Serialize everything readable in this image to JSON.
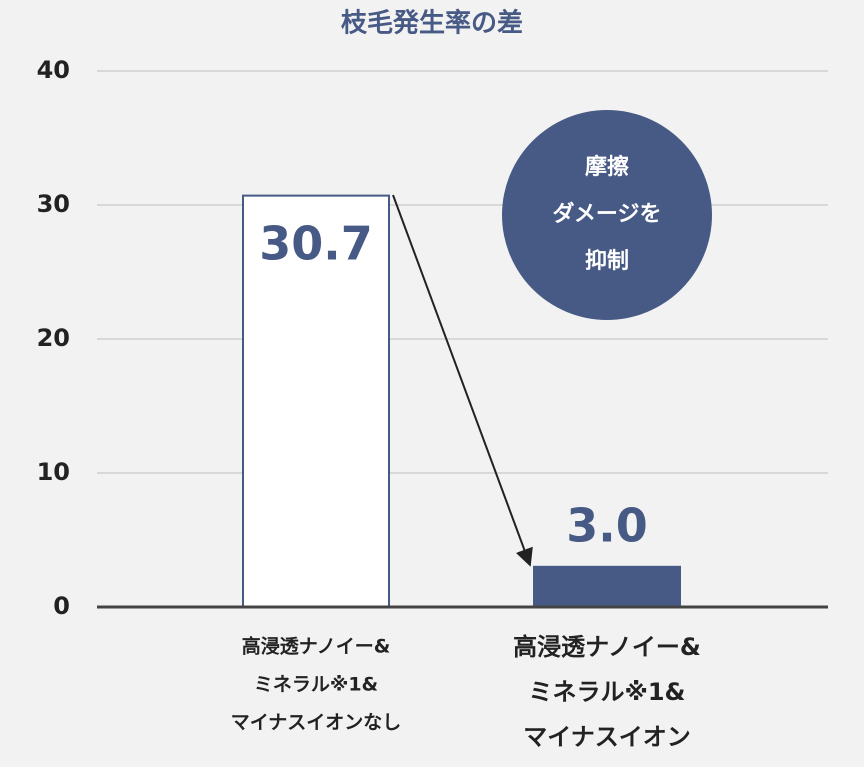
{
  "chart_data": {
    "type": "bar",
    "title": "枝毛発生率の差",
    "categories": [
      [
        "高浸透ナノイー&",
        "ミネラル※1&",
        "マイナスイオンなし"
      ],
      [
        "高浸透ナノイー&",
        "ミネラル※1&",
        "マイナスイオン"
      ]
    ],
    "values": [
      30.7,
      3.0
    ],
    "value_labels": [
      "30.7",
      "3.0"
    ],
    "colors": [
      "#ffffff",
      "#475a85"
    ],
    "edgecolor": "#475a85",
    "ylim": [
      0,
      40
    ],
    "yticks": [
      0,
      10,
      20,
      30,
      40
    ],
    "grid": true,
    "annotation": [
      "摩擦",
      "ダメージを",
      "抑制"
    ]
  }
}
